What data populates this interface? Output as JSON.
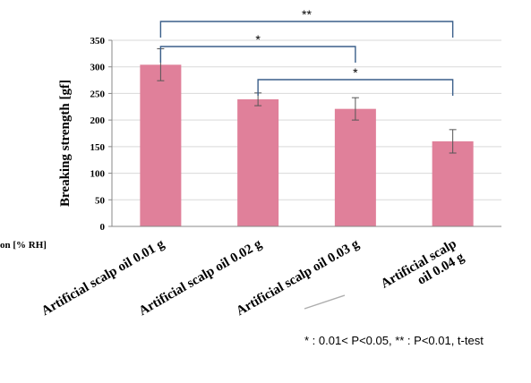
{
  "chart_data": {
    "type": "bar",
    "ylabel": "Breaking strength [gf]",
    "ylim": [
      0,
      350
    ],
    "yticks": [
      0,
      50,
      100,
      150,
      200,
      250,
      300,
      350
    ],
    "grid": true,
    "categories": [
      "Artificial scalp oil 0.01 g",
      "Artificial scalp oil 0.02 g",
      "Artificial scalp oil 0.03 g",
      "Artificial scalp oil 0.04 g"
    ],
    "category_lines": [
      [
        "Artificial scalp oil 0.01 g"
      ],
      [
        "Artificial scalp oil 0.02 g"
      ],
      [
        "Artificial scalp oil 0.03 g"
      ],
      [
        "Artificial scalp",
        "oil 0.04 g"
      ]
    ],
    "values": [
      304,
      239,
      221,
      160
    ],
    "errors": [
      30,
      12,
      21,
      22
    ],
    "bar_color": "#e0809a",
    "bracket_color": "#3a5f8a",
    "significance": [
      {
        "from": 0,
        "to": 3,
        "label": "**"
      },
      {
        "from": 0,
        "to": 2,
        "label": "*"
      },
      {
        "from": 1,
        "to": 3,
        "label": "*"
      }
    ],
    "footnote": "* : 0.01< P<0.05, ** : P<0.01, t-test",
    "cut_off_text": "on [% RH]"
  }
}
